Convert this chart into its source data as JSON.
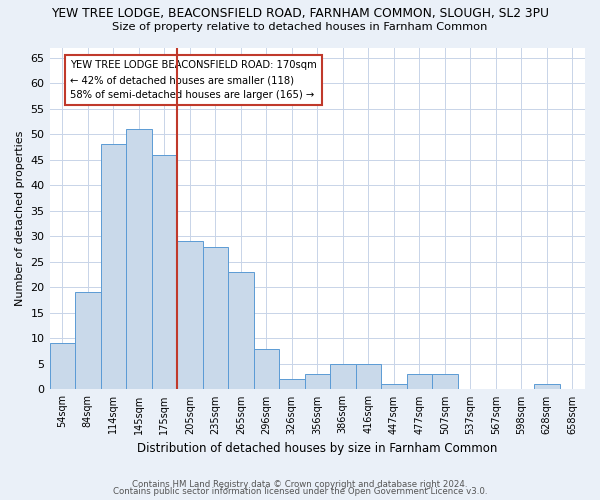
{
  "title1": "YEW TREE LODGE, BEACONSFIELD ROAD, FARNHAM COMMON, SLOUGH, SL2 3PU",
  "title2": "Size of property relative to detached houses in Farnham Common",
  "xlabel": "Distribution of detached houses by size in Farnham Common",
  "ylabel": "Number of detached properties",
  "footer1": "Contains HM Land Registry data © Crown copyright and database right 2024.",
  "footer2": "Contains public sector information licensed under the Open Government Licence v3.0.",
  "bar_labels": [
    "54sqm",
    "84sqm",
    "114sqm",
    "145sqm",
    "175sqm",
    "205sqm",
    "235sqm",
    "265sqm",
    "296sqm",
    "326sqm",
    "356sqm",
    "386sqm",
    "416sqm",
    "447sqm",
    "477sqm",
    "507sqm",
    "537sqm",
    "567sqm",
    "598sqm",
    "628sqm",
    "658sqm"
  ],
  "bar_values": [
    9,
    19,
    48,
    51,
    46,
    29,
    28,
    23,
    8,
    2,
    3,
    5,
    5,
    1,
    3,
    3,
    0,
    0,
    0,
    1,
    0
  ],
  "bar_color": "#c9d9ea",
  "bar_edge_color": "#5b9bd5",
  "vline_color": "#c0392b",
  "annotation_line1": "YEW TREE LODGE BEACONSFIELD ROAD: 170sqm",
  "annotation_line2": "← 42% of detached houses are smaller (118)",
  "annotation_line3": "58% of semi-detached houses are larger (165) →",
  "annotation_box_color": "white",
  "annotation_box_edge": "#c0392b",
  "bg_color": "#eaf0f8",
  "plot_bg_color": "white",
  "grid_color": "#c8d4e8",
  "ylim": [
    0,
    67
  ],
  "yticks": [
    0,
    5,
    10,
    15,
    20,
    25,
    30,
    35,
    40,
    45,
    50,
    55,
    60,
    65
  ]
}
